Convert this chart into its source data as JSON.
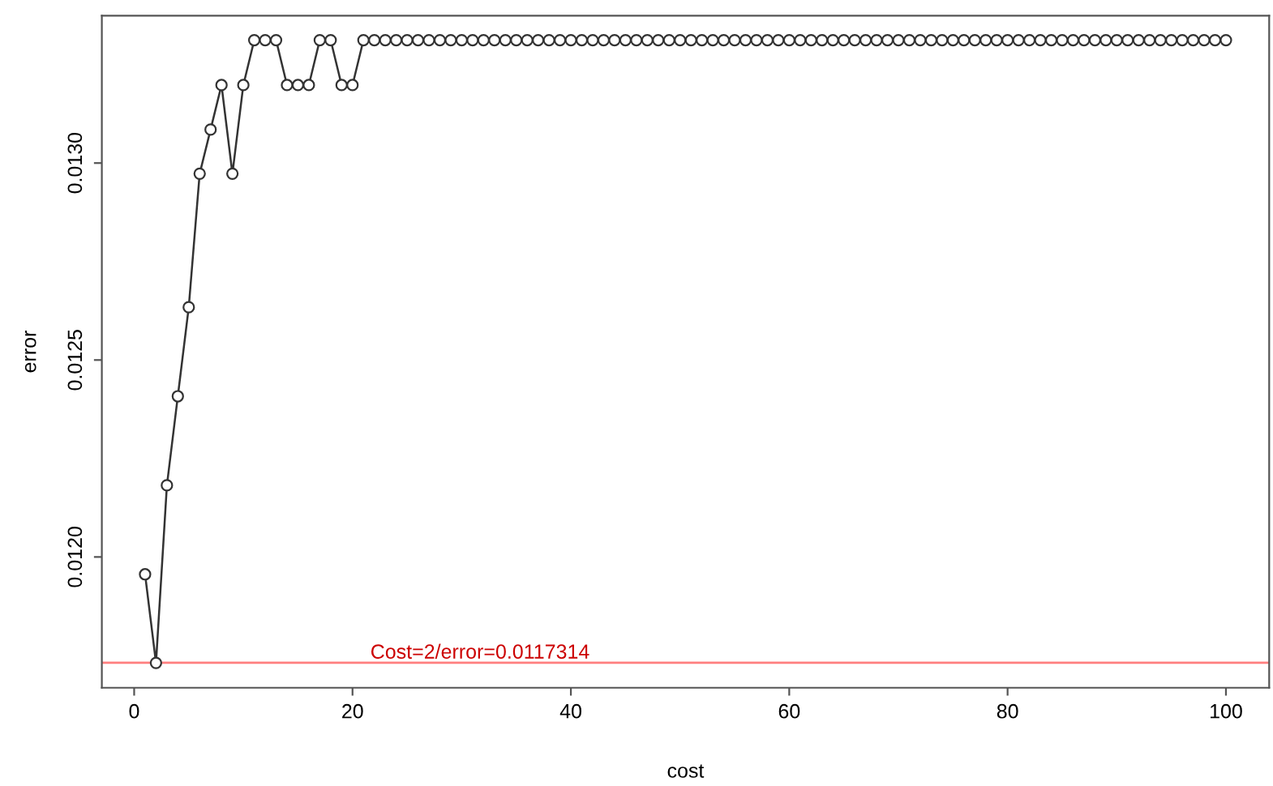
{
  "chart_data": {
    "type": "line",
    "xlabel": "cost",
    "ylabel": "error",
    "x": [
      1,
      2,
      3,
      4,
      5,
      6,
      7,
      8,
      9,
      10,
      11,
      12,
      13,
      14,
      15,
      16,
      17,
      18,
      19,
      20,
      21,
      22,
      23,
      24,
      25,
      26,
      27,
      28,
      29,
      30,
      31,
      32,
      33,
      34,
      35,
      36,
      37,
      38,
      39,
      40,
      41,
      42,
      43,
      44,
      45,
      46,
      47,
      48,
      49,
      50,
      51,
      52,
      53,
      54,
      55,
      56,
      57,
      58,
      59,
      60,
      61,
      62,
      63,
      64,
      65,
      66,
      67,
      68,
      69,
      70,
      71,
      72,
      73,
      74,
      75,
      76,
      77,
      78,
      79,
      80,
      81,
      82,
      83,
      84,
      85,
      86,
      87,
      88,
      89,
      90,
      91,
      92,
      93,
      94,
      95,
      96,
      97,
      98,
      99,
      100
    ],
    "series": [
      {
        "color": "#333333",
        "values": [
          0.011956,
          0.011731,
          0.012182,
          0.012408,
          0.012634,
          0.012973,
          0.013085,
          0.013198,
          0.012973,
          0.013198,
          0.013312,
          0.013312,
          0.013312,
          0.013198,
          0.013198,
          0.013198,
          0.013312,
          0.013312,
          0.013198,
          0.013198,
          0.013312,
          0.013312,
          0.013312,
          0.013312,
          0.013312,
          0.013312,
          0.013312,
          0.013312,
          0.013312,
          0.013312,
          0.013312,
          0.013312,
          0.013312,
          0.013312,
          0.013312,
          0.013312,
          0.013312,
          0.013312,
          0.013312,
          0.013312,
          0.013312,
          0.013312,
          0.013312,
          0.013312,
          0.013312,
          0.013312,
          0.013312,
          0.013312,
          0.013312,
          0.013312,
          0.013312,
          0.013312,
          0.013312,
          0.013312,
          0.013312,
          0.013312,
          0.013312,
          0.013312,
          0.013312,
          0.013312,
          0.013312,
          0.013312,
          0.013312,
          0.013312,
          0.013312,
          0.013312,
          0.013312,
          0.013312,
          0.013312,
          0.013312,
          0.013312,
          0.013312,
          0.013312,
          0.013312,
          0.013312,
          0.013312,
          0.013312,
          0.013312,
          0.013312,
          0.013312,
          0.013312,
          0.013312,
          0.013312,
          0.013312,
          0.013312,
          0.013312,
          0.013312,
          0.013312,
          0.013312,
          0.013312,
          0.013312,
          0.013312,
          0.013312,
          0.013312,
          0.013312,
          0.013312,
          0.013312,
          0.013312,
          0.013312,
          0.013312
        ]
      }
    ],
    "marker": "circle",
    "line_style": "solid",
    "grid": false,
    "xlim": [
      -2.96,
      103.96
    ],
    "ylim": [
      0.011668,
      0.013374
    ],
    "xticks": [
      0,
      20,
      40,
      60,
      80,
      100
    ],
    "yticks": [
      {
        "value": 0.012,
        "label": "0.0120"
      },
      {
        "value": 0.0125,
        "label": "0.0125"
      },
      {
        "value": 0.013,
        "label": "0.0130"
      }
    ],
    "ref_lines": [
      {
        "axis": "y",
        "value": 0.0117314,
        "label": "Cost=2/error=0.0117314",
        "color": "#ff7f7f"
      }
    ]
  }
}
